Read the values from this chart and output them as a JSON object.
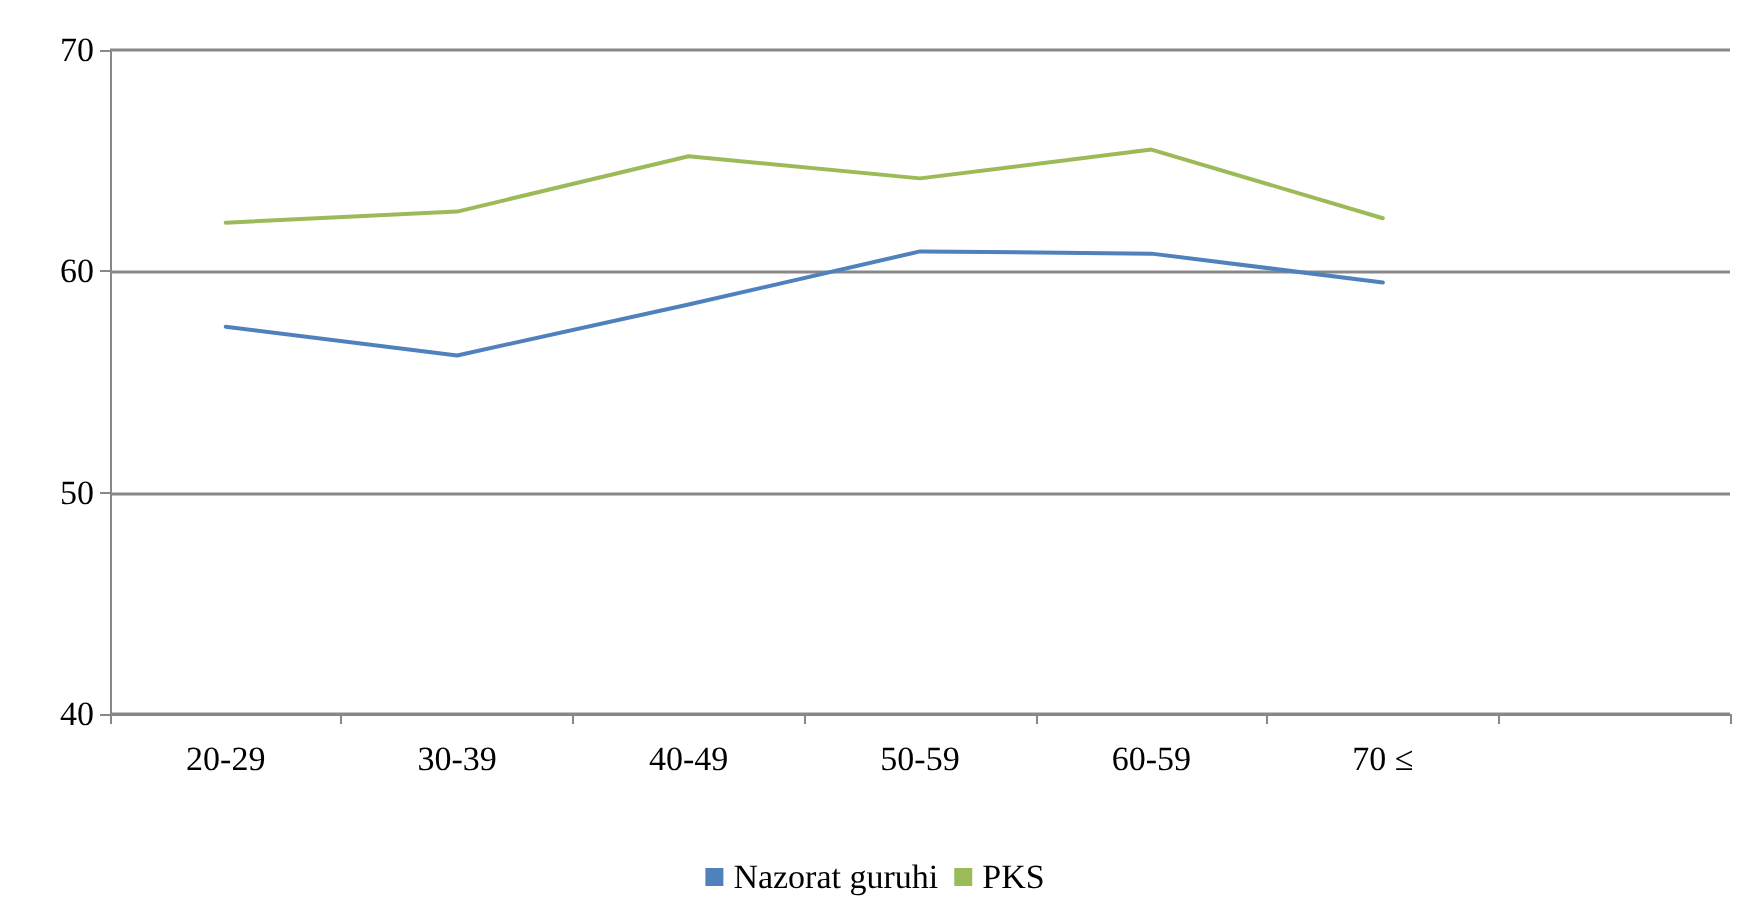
{
  "chart_data": {
    "type": "line",
    "categories": [
      "20-29",
      "30-39",
      "40-49",
      "50-59",
      "60-59",
      "70 ≤",
      null
    ],
    "series": [
      {
        "name": "Nazorat guruhi",
        "color": "#4f81bd",
        "values": [
          57.5,
          56.2,
          58.5,
          60.9,
          60.8,
          59.5,
          null
        ]
      },
      {
        "name": "PKS",
        "color": "#9bbb59",
        "values": [
          62.2,
          62.7,
          65.2,
          64.2,
          65.5,
          62.4,
          null
        ]
      }
    ],
    "ylim": [
      40,
      70
    ],
    "yticks": [
      40,
      50,
      60,
      70
    ],
    "grid": "y",
    "legend": "bottom",
    "marker": "none",
    "line_style": "solid"
  }
}
